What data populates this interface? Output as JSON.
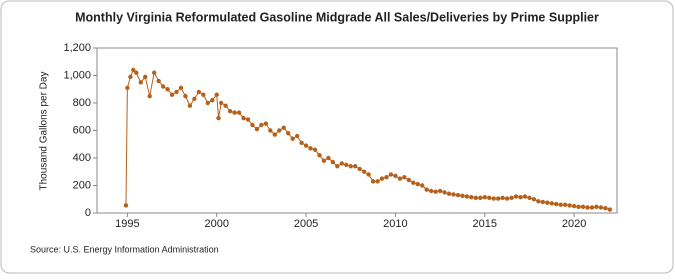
{
  "chart_data": {
    "type": "line",
    "title": "Monthly Virginia Reformulated Gasoline Midgrade All Sales/Deliveries by Prime Supplier",
    "y_label": "Thousand Gallons per Day",
    "source": "Source: U.S. Energy Information Administration",
    "color": "#b5611c",
    "grid": false,
    "x": [
      1994.92,
      1995.0,
      1995.17,
      1995.33,
      1995.5,
      1995.75,
      1996.0,
      1996.25,
      1996.5,
      1996.75,
      1997.0,
      1997.25,
      1997.5,
      1997.75,
      1998.0,
      1998.25,
      1998.5,
      1998.75,
      1999.0,
      1999.25,
      1999.5,
      1999.75,
      2000.0,
      2000.1,
      2000.25,
      2000.5,
      2000.75,
      2001.0,
      2001.25,
      2001.5,
      2001.75,
      2002.0,
      2002.25,
      2002.5,
      2002.75,
      2003.0,
      2003.25,
      2003.5,
      2003.75,
      2004.0,
      2004.25,
      2004.5,
      2004.75,
      2005.0,
      2005.25,
      2005.5,
      2005.75,
      2006.0,
      2006.25,
      2006.5,
      2006.75,
      2007.0,
      2007.25,
      2007.5,
      2007.75,
      2008.0,
      2008.25,
      2008.5,
      2008.75,
      2009.0,
      2009.25,
      2009.5,
      2009.75,
      2010.0,
      2010.25,
      2010.5,
      2010.75,
      2011.0,
      2011.25,
      2011.5,
      2011.75,
      2012.0,
      2012.25,
      2012.5,
      2012.75,
      2013.0,
      2013.25,
      2013.5,
      2013.75,
      2014.0,
      2014.25,
      2014.5,
      2014.75,
      2015.0,
      2015.25,
      2015.5,
      2015.75,
      2016.0,
      2016.25,
      2016.5,
      2016.75,
      2017.0,
      2017.25,
      2017.5,
      2017.75,
      2018.0,
      2018.25,
      2018.5,
      2018.75,
      2019.0,
      2019.25,
      2019.5,
      2019.75,
      2020.0,
      2020.25,
      2020.5,
      2020.75,
      2021.0,
      2021.25,
      2021.5,
      2021.75,
      2022.0
    ],
    "values": [
      55,
      910,
      990,
      1040,
      1020,
      950,
      990,
      850,
      1020,
      960,
      920,
      900,
      860,
      880,
      910,
      850,
      780,
      830,
      880,
      860,
      800,
      820,
      860,
      690,
      800,
      780,
      740,
      730,
      730,
      690,
      680,
      640,
      610,
      640,
      650,
      600,
      570,
      600,
      620,
      580,
      540,
      560,
      510,
      490,
      470,
      460,
      420,
      380,
      400,
      370,
      340,
      360,
      350,
      340,
      340,
      320,
      300,
      280,
      230,
      230,
      250,
      260,
      280,
      270,
      250,
      260,
      240,
      220,
      210,
      200,
      170,
      160,
      155,
      160,
      150,
      140,
      135,
      130,
      125,
      120,
      115,
      110,
      110,
      115,
      110,
      105,
      105,
      110,
      105,
      110,
      120,
      115,
      120,
      110,
      100,
      85,
      80,
      75,
      70,
      65,
      60,
      60,
      55,
      50,
      45,
      45,
      40,
      40,
      45,
      40,
      35,
      25
    ],
    "xlim": [
      1993.3,
      2022.4
    ],
    "xticks": [
      1995,
      2000,
      2005,
      2010,
      2015,
      2020
    ],
    "ylim": [
      0,
      1200
    ],
    "yticks": [
      0,
      200,
      400,
      600,
      800,
      {
        "value": 1000,
        "label": "1,000"
      },
      {
        "value": 1200,
        "label": "1,200"
      }
    ]
  }
}
